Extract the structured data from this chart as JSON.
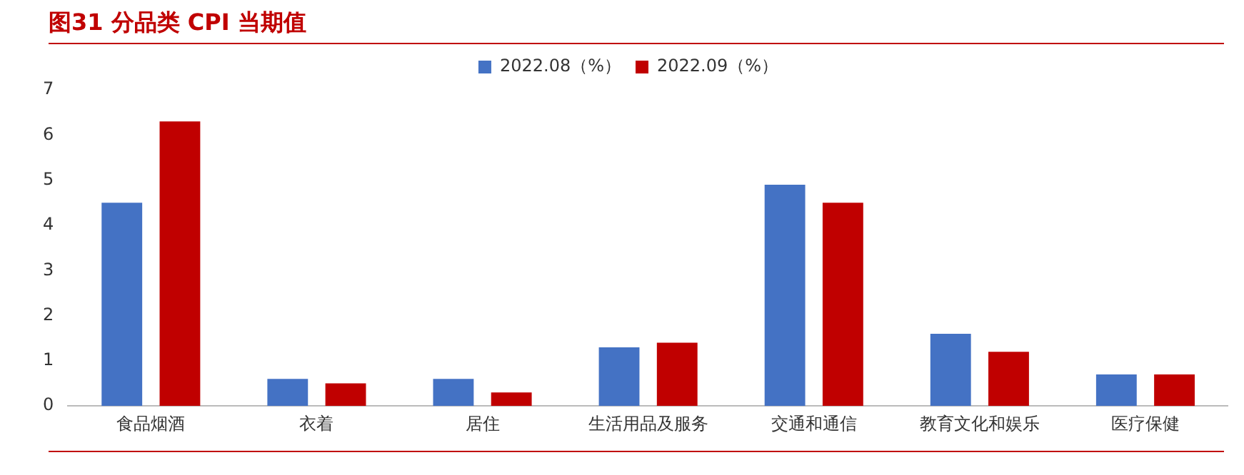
{
  "chart_data": {
    "type": "bar",
    "title": "图31  分品类 CPI 当期值",
    "categories": [
      "食品烟酒",
      "衣着",
      "居住",
      "生活用品及服务",
      "交通和通信",
      "教育文化和娱乐",
      "医疗保健"
    ],
    "series": [
      {
        "name": "2022.08（%）",
        "color": "#4472c4",
        "values": [
          4.5,
          0.6,
          0.6,
          1.3,
          4.9,
          1.6,
          0.7
        ]
      },
      {
        "name": "2022.09（%）",
        "color": "#c00000",
        "values": [
          6.3,
          0.5,
          0.3,
          1.4,
          4.5,
          1.2,
          0.7
        ]
      }
    ],
    "ylim": [
      0,
      7
    ],
    "yticks": [
      0,
      1,
      2,
      3,
      4,
      5,
      6,
      7
    ],
    "grid": false,
    "legend": "top"
  }
}
